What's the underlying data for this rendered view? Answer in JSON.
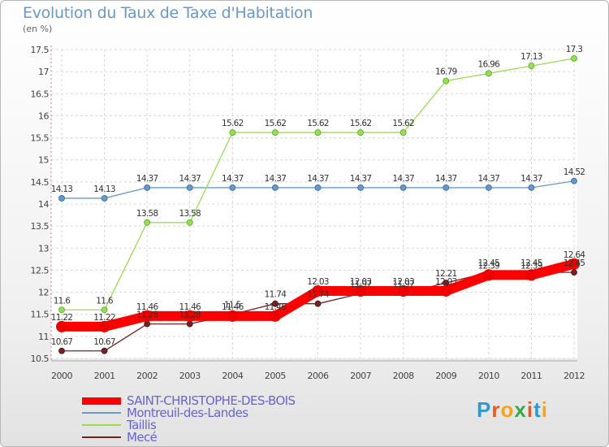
{
  "header": {
    "title": "Evolution du Taux de Taxe d'Habitation",
    "unit": "(en %)"
  },
  "chart_data": {
    "type": "line",
    "title": "Evolution du Taux de Taxe d'Habitation",
    "ylabel": "(en %)",
    "xlabel": "",
    "ylim": [
      10.5,
      17.5
    ],
    "yticks": [
      "10.5",
      "11",
      "11.5",
      "12",
      "12.5",
      "13",
      "13.5",
      "14",
      "14.5",
      "15",
      "15.5",
      "16",
      "16.5",
      "17",
      "17.5"
    ],
    "categories": [
      "2000",
      "2001",
      "2002",
      "2003",
      "2004",
      "2005",
      "2006",
      "2007",
      "2008",
      "2009",
      "2010",
      "2011",
      "2012"
    ],
    "grid": true,
    "legend": "bottom-left",
    "series": [
      {
        "name": "SAINT-CHRISTOPHE-DES-BOIS",
        "color": "#ff0000",
        "values": [
          11.22,
          11.22,
          11.46,
          11.46,
          11.46,
          11.46,
          12.03,
          12.03,
          12.03,
          12.03,
          12.39,
          12.39,
          12.64
        ],
        "labels": [
          "11.22",
          "11.22",
          "11.46",
          "11.46",
          "11.46",
          "11.46",
          "12.03",
          "12.03",
          "12.03",
          "12.03",
          "12.39",
          "12.39",
          "12.64"
        ]
      },
      {
        "name": "Montreuil-des-Landes",
        "color": "#6699cc",
        "values": [
          14.13,
          14.13,
          14.37,
          14.37,
          14.37,
          14.37,
          14.37,
          14.37,
          14.37,
          14.37,
          14.37,
          14.37,
          14.52
        ],
        "labels": [
          "14.13",
          "14.13",
          "14.37",
          "14.37",
          "14.37",
          "14.37",
          "14.37",
          "14.37",
          "14.37",
          "14.37",
          "14.37",
          "14.37",
          "14.52"
        ]
      },
      {
        "name": "Taillis",
        "color": "#99dd55",
        "values": [
          11.6,
          11.6,
          13.58,
          13.58,
          15.62,
          15.62,
          15.62,
          15.62,
          15.62,
          16.79,
          16.96,
          17.13,
          17.3
        ],
        "labels": [
          "11.6",
          "11.6",
          "13.58",
          "13.58",
          "15.62",
          "15.62",
          "15.62",
          "15.62",
          "15.62",
          "16.79",
          "16.96",
          "17.13",
          "17.3"
        ]
      },
      {
        "name": "Mecé",
        "color": "#772222",
        "values": [
          10.67,
          10.67,
          11.28,
          11.28,
          11.5,
          11.74,
          11.74,
          11.97,
          11.97,
          12.21,
          12.45,
          12.45,
          12.45
        ],
        "labels": [
          "10.67",
          "10.67",
          "11.28",
          "11.28",
          "11.5",
          "11.74",
          "11.74",
          "11.97",
          "11.97",
          "12.21",
          "12.45",
          "12.45",
          "12.45"
        ]
      }
    ]
  },
  "logo": {
    "text": "Proxiti",
    "colors": [
      "#2b9bd6",
      "#e85a1c",
      "#f5a31a",
      "#3aa84a",
      "#e85a1c",
      "#2b9bd6",
      "#f5a31a"
    ]
  }
}
